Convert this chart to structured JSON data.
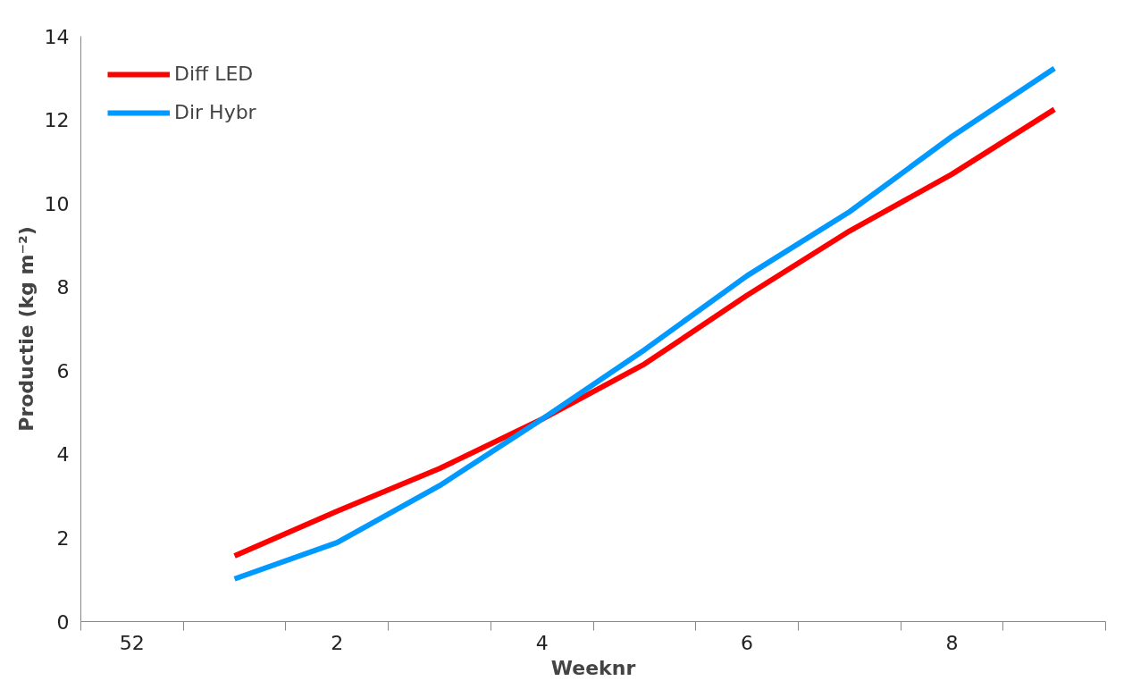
{
  "chart_data": {
    "type": "line",
    "xlabel": "Weeknr",
    "ylabel": "Productie (kg m⁻²)",
    "categories": [
      "52",
      null,
      "2",
      null,
      "4",
      null,
      "6",
      null,
      "8",
      null
    ],
    "series": [
      {
        "name": "Diff LED",
        "color": "#ff0000",
        "values": [
          null,
          1.57,
          2.64,
          3.66,
          4.84,
          6.16,
          7.8,
          9.34,
          10.7,
          12.25
        ]
      },
      {
        "name": "Dir Hybr",
        "color": "#0099ff",
        "values": [
          null,
          1.02,
          1.89,
          3.25,
          4.84,
          6.5,
          8.27,
          9.8,
          11.6,
          13.23
        ]
      }
    ],
    "ylim": [
      0,
      14
    ],
    "yticks": [
      0,
      2,
      4,
      6,
      8,
      10,
      12,
      14
    ],
    "grid": false,
    "legend": "top left",
    "marker": "none",
    "line_style": "solid"
  }
}
